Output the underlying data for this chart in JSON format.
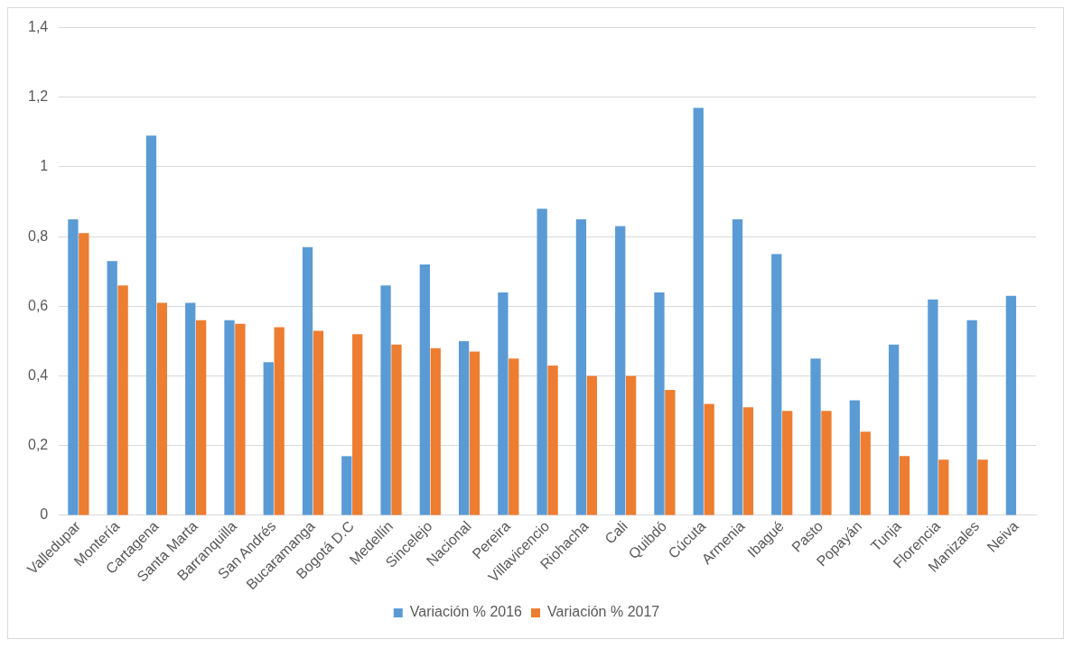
{
  "chart_data": {
    "type": "bar",
    "categories": [
      "Valledupar",
      "Montería",
      "Cartagena",
      "Santa Marta",
      "Barranquilla",
      "San Andrés",
      "Bucaramanga",
      "Bogotá D.C",
      "Medellín",
      "Sincelejo",
      "Nacional",
      "Pereira",
      "Villavicencio",
      "Riohacha",
      "Cali",
      "Quibdó",
      "Cúcuta",
      "Armenia",
      "Ibagué",
      "Pasto",
      "Popayán",
      "Tunja",
      "Florencia",
      "Manizales",
      "Neiva"
    ],
    "series": [
      {
        "name": "Variación % 2016",
        "color": "#5b9bd5",
        "values": [
          0.85,
          0.73,
          1.09,
          0.61,
          0.56,
          0.44,
          0.77,
          0.17,
          0.66,
          0.72,
          0.5,
          0.64,
          0.88,
          0.85,
          0.83,
          0.64,
          1.17,
          0.85,
          0.75,
          0.45,
          0.33,
          0.49,
          0.62,
          0.56,
          0.63
        ]
      },
      {
        "name": "Variación % 2017",
        "color": "#ed7d31",
        "values": [
          0.81,
          0.66,
          0.61,
          0.56,
          0.55,
          0.54,
          0.53,
          0.52,
          0.49,
          0.48,
          0.47,
          0.45,
          0.43,
          0.4,
          0.4,
          0.36,
          0.32,
          0.31,
          0.3,
          0.3,
          0.24,
          0.17,
          0.16,
          0.16,
          null
        ]
      }
    ],
    "ylim": [
      0,
      1.4
    ],
    "yticks": [
      0,
      {
        "value": 0.2,
        "label": "0,2"
      },
      {
        "value": 0.4,
        "label": "0,4"
      },
      {
        "value": 0.6,
        "label": "0,6"
      },
      {
        "value": 0.8,
        "label": "0,8"
      },
      1,
      {
        "value": 1.2,
        "label": "1,2"
      },
      {
        "value": 1.4,
        "label": "1,4"
      }
    ],
    "grid": "y",
    "legend": "bottom"
  }
}
